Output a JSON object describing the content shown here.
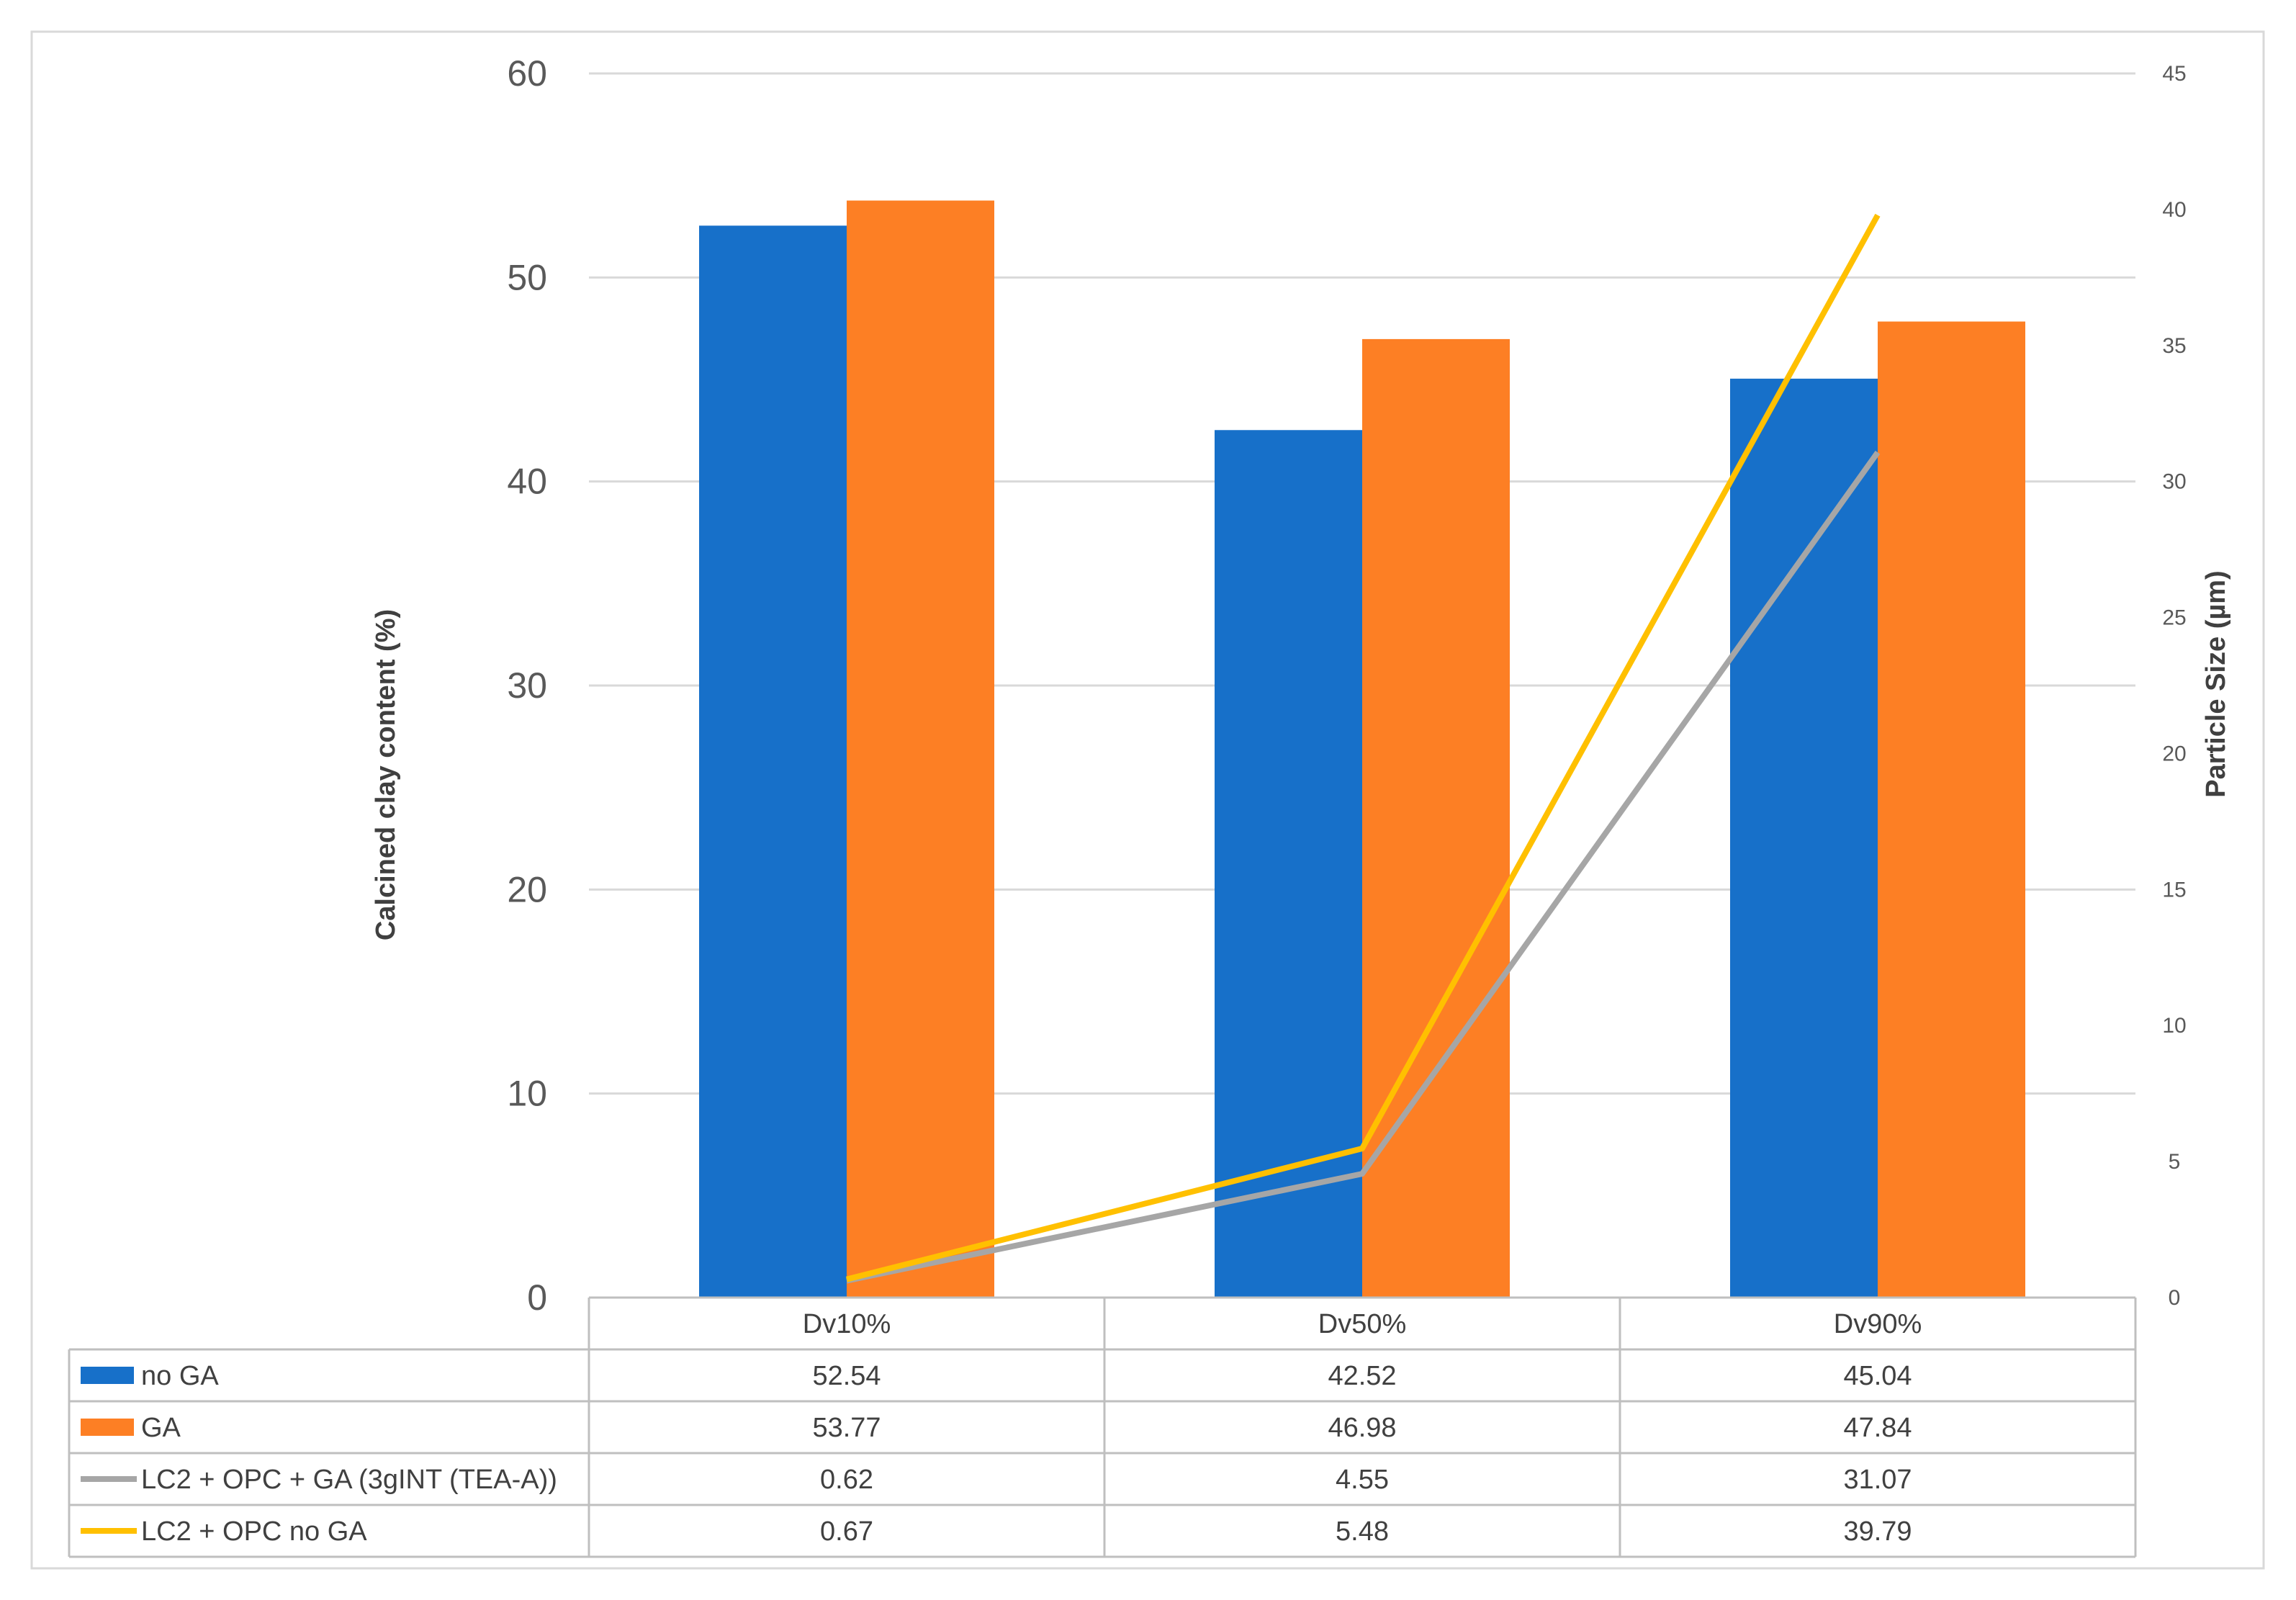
{
  "chart_data": {
    "type": "bar",
    "categories": [
      "Dv10%",
      "Dv50%",
      "Dv90%"
    ],
    "ylabel": "Calcined clay content (%)",
    "y2label": "Particle Size (µm)",
    "ylim": [
      0,
      60
    ],
    "yticks": [
      0,
      10,
      20,
      30,
      40,
      50,
      60
    ],
    "y2lim": [
      0,
      45
    ],
    "y2ticks": [
      0,
      5,
      10,
      15,
      20,
      25,
      30,
      35,
      40,
      45
    ],
    "grid": true,
    "legend": "data-table",
    "series": [
      {
        "name": "no GA",
        "kind": "bar",
        "axis": "left",
        "color": "#1770c9",
        "values": [
          52.54,
          42.52,
          45.04
        ],
        "labels": [
          "52.54",
          "42.52",
          "45.04"
        ]
      },
      {
        "name": "GA",
        "kind": "bar",
        "axis": "left",
        "color": "#fd7f24",
        "values": [
          53.77,
          46.98,
          47.84
        ],
        "labels": [
          "53.77",
          "46.98",
          "47.84"
        ]
      },
      {
        "name": "LC2 + OPC + GA (3gINT (TEA-A))",
        "kind": "line",
        "axis": "right",
        "color": "#a6a6a6",
        "values": [
          0.62,
          4.55,
          31.07
        ],
        "labels": [
          "0.62",
          "4.55",
          "31.07"
        ]
      },
      {
        "name": "LC2 + OPC no GA",
        "kind": "line",
        "axis": "right",
        "color": "#ffc000",
        "values": [
          0.67,
          5.48,
          39.79
        ],
        "labels": [
          "0.67",
          "5.48",
          "39.79"
        ]
      }
    ]
  }
}
